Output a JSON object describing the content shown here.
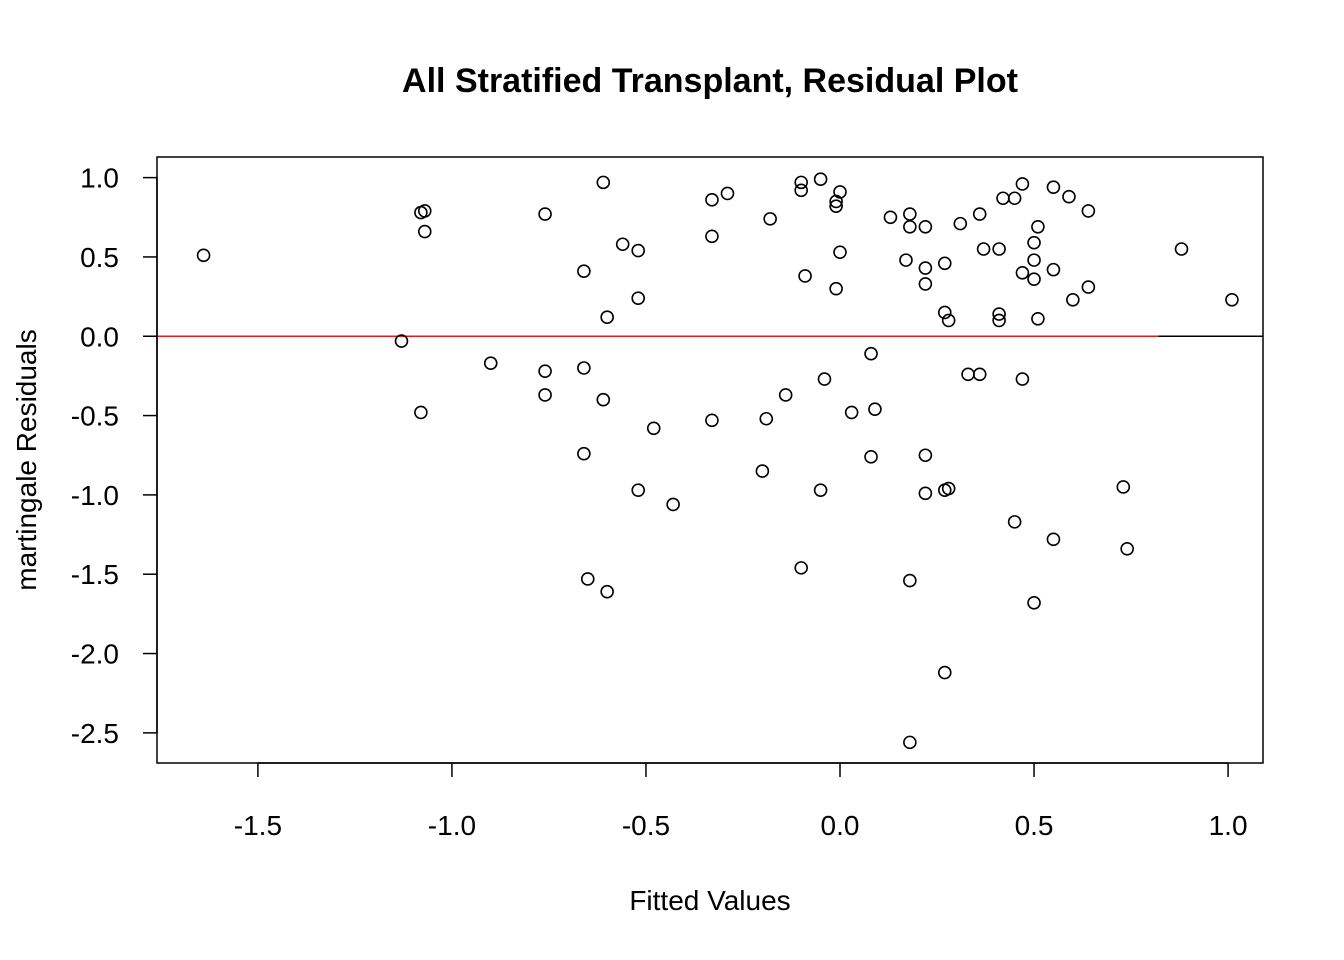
{
  "chart_data": {
    "type": "scatter",
    "title": "All Stratified Transplant, Residual Plot",
    "xlabel": "Fitted Values",
    "ylabel": "martingale Residuals",
    "xlim": [
      -1.76,
      1.09
    ],
    "ylim": [
      -2.69,
      1.13
    ],
    "x_ticks": [
      -1.5,
      -1.0,
      -0.5,
      0.0,
      0.5,
      1.0
    ],
    "x_tick_labels": [
      "-1.5",
      "-1.0",
      "-0.5",
      "0.0",
      "0.5",
      "1.0"
    ],
    "y_ticks": [
      1.0,
      0.5,
      0.0,
      -0.5,
      -1.0,
      -1.5,
      -2.0,
      -2.5
    ],
    "y_tick_labels": [
      "1.0",
      "0.5",
      "0.0",
      "-0.5",
      "-1.0",
      "-1.5",
      "-2.0",
      "-2.5"
    ],
    "grid": false,
    "reference_lines": [
      {
        "y": 0,
        "x_from": -1.76,
        "x_to": 0.82,
        "color": "#e41a1c"
      },
      {
        "y": 0,
        "x_from": 0.82,
        "x_to": 1.09,
        "color": "#000000"
      }
    ],
    "marker": {
      "shape": "open-circle",
      "color": "#000000"
    },
    "points": [
      {
        "x": -1.64,
        "y": 0.51
      },
      {
        "x": -1.13,
        "y": -0.03
      },
      {
        "x": -1.08,
        "y": 0.78
      },
      {
        "x": -1.07,
        "y": 0.79
      },
      {
        "x": -1.07,
        "y": 0.66
      },
      {
        "x": -1.08,
        "y": -0.48
      },
      {
        "x": -0.9,
        "y": -0.17
      },
      {
        "x": -0.76,
        "y": 0.77
      },
      {
        "x": -0.76,
        "y": -0.22
      },
      {
        "x": -0.76,
        "y": -0.37
      },
      {
        "x": -0.66,
        "y": 0.41
      },
      {
        "x": -0.66,
        "y": -0.2
      },
      {
        "x": -0.66,
        "y": -0.74
      },
      {
        "x": -0.65,
        "y": -1.53
      },
      {
        "x": -0.61,
        "y": 0.97
      },
      {
        "x": -0.61,
        "y": -0.4
      },
      {
        "x": -0.6,
        "y": 0.12
      },
      {
        "x": -0.6,
        "y": -1.61
      },
      {
        "x": -0.56,
        "y": 0.58
      },
      {
        "x": -0.52,
        "y": 0.54
      },
      {
        "x": -0.52,
        "y": 0.24
      },
      {
        "x": -0.52,
        "y": -0.97
      },
      {
        "x": -0.48,
        "y": -0.58
      },
      {
        "x": -0.43,
        "y": -1.06
      },
      {
        "x": -0.33,
        "y": 0.86
      },
      {
        "x": -0.33,
        "y": 0.63
      },
      {
        "x": -0.33,
        "y": -0.53
      },
      {
        "x": -0.29,
        "y": 0.9
      },
      {
        "x": -0.18,
        "y": 0.74
      },
      {
        "x": -0.19,
        "y": -0.52
      },
      {
        "x": -0.2,
        "y": -0.85
      },
      {
        "x": -0.1,
        "y": 0.97
      },
      {
        "x": -0.1,
        "y": 0.92
      },
      {
        "x": -0.09,
        "y": 0.38
      },
      {
        "x": -0.1,
        "y": -1.46
      },
      {
        "x": -0.14,
        "y": -0.37
      },
      {
        "x": -0.05,
        "y": 0.99
      },
      {
        "x": -0.05,
        "y": -0.97
      },
      {
        "x": -0.04,
        "y": -0.27
      },
      {
        "x": -0.01,
        "y": 0.85
      },
      {
        "x": -0.01,
        "y": 0.82
      },
      {
        "x": 0.0,
        "y": 0.91
      },
      {
        "x": 0.0,
        "y": 0.53
      },
      {
        "x": -0.01,
        "y": 0.3
      },
      {
        "x": 0.03,
        "y": -0.48
      },
      {
        "x": 0.08,
        "y": -0.11
      },
      {
        "x": 0.09,
        "y": -0.46
      },
      {
        "x": 0.08,
        "y": -0.76
      },
      {
        "x": 0.13,
        "y": 0.75
      },
      {
        "x": 0.18,
        "y": 0.77
      },
      {
        "x": 0.18,
        "y": 0.69
      },
      {
        "x": 0.17,
        "y": 0.48
      },
      {
        "x": 0.22,
        "y": 0.69
      },
      {
        "x": 0.22,
        "y": 0.43
      },
      {
        "x": 0.22,
        "y": 0.33
      },
      {
        "x": 0.22,
        "y": -0.75
      },
      {
        "x": 0.22,
        "y": -0.99
      },
      {
        "x": 0.18,
        "y": -1.54
      },
      {
        "x": 0.18,
        "y": -2.56
      },
      {
        "x": 0.27,
        "y": 0.46
      },
      {
        "x": 0.27,
        "y": 0.15
      },
      {
        "x": 0.28,
        "y": 0.1
      },
      {
        "x": 0.27,
        "y": -0.97
      },
      {
        "x": 0.28,
        "y": -0.96
      },
      {
        "x": 0.27,
        "y": -2.12
      },
      {
        "x": 0.31,
        "y": 0.71
      },
      {
        "x": 0.33,
        "y": -0.24
      },
      {
        "x": 0.36,
        "y": 0.77
      },
      {
        "x": 0.37,
        "y": 0.55
      },
      {
        "x": 0.36,
        "y": -0.24
      },
      {
        "x": 0.41,
        "y": 0.55
      },
      {
        "x": 0.41,
        "y": 0.14
      },
      {
        "x": 0.41,
        "y": 0.1
      },
      {
        "x": 0.42,
        "y": 0.87
      },
      {
        "x": 0.45,
        "y": 0.87
      },
      {
        "x": 0.47,
        "y": 0.96
      },
      {
        "x": 0.47,
        "y": 0.4
      },
      {
        "x": 0.47,
        "y": -0.27
      },
      {
        "x": 0.45,
        "y": -1.17
      },
      {
        "x": 0.5,
        "y": 0.59
      },
      {
        "x": 0.5,
        "y": 0.48
      },
      {
        "x": 0.5,
        "y": 0.36
      },
      {
        "x": 0.51,
        "y": 0.69
      },
      {
        "x": 0.51,
        "y": 0.11
      },
      {
        "x": 0.5,
        "y": -1.68
      },
      {
        "x": 0.55,
        "y": 0.94
      },
      {
        "x": 0.55,
        "y": 0.42
      },
      {
        "x": 0.55,
        "y": -1.28
      },
      {
        "x": 0.59,
        "y": 0.88
      },
      {
        "x": 0.6,
        "y": 0.23
      },
      {
        "x": 0.64,
        "y": 0.79
      },
      {
        "x": 0.64,
        "y": 0.31
      },
      {
        "x": 0.73,
        "y": -0.95
      },
      {
        "x": 0.74,
        "y": -1.34
      },
      {
        "x": 0.88,
        "y": 0.55
      },
      {
        "x": 1.01,
        "y": 0.23
      }
    ]
  }
}
